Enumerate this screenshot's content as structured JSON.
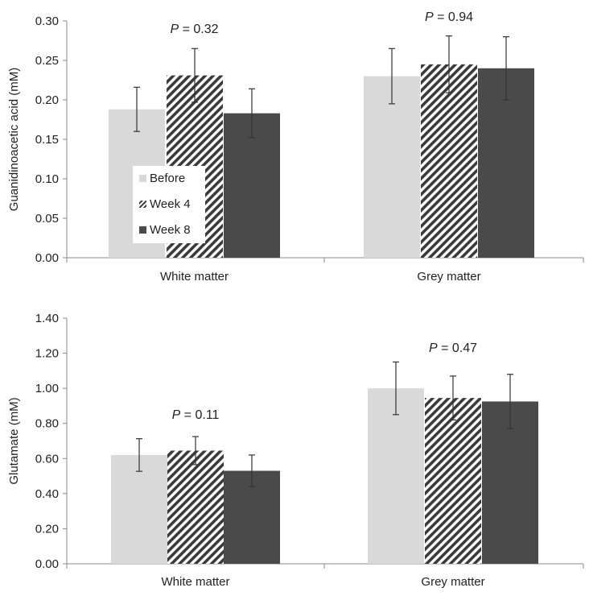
{
  "colors": {
    "before": "#d9d9d9",
    "week4_stripe": "#3a3a3a",
    "week4_bg": "#ffffff",
    "week8": "#4a4a4a",
    "axis": "#888888",
    "error_bar": "#333333"
  },
  "chart_data": [
    {
      "type": "bar",
      "ylabel": "Guanidinoacetic acid (mM)",
      "ylim": [
        0,
        0.3
      ],
      "yticks": [
        "0.00",
        "0.05",
        "0.10",
        "0.15",
        "0.20",
        "0.25",
        "0.30"
      ],
      "categories": [
        "White matter",
        "Grey matter"
      ],
      "series": [
        {
          "name": "Before",
          "values": [
            0.188,
            0.23
          ],
          "errors": [
            0.028,
            0.035
          ]
        },
        {
          "name": "Week 4",
          "values": [
            0.231,
            0.245
          ],
          "errors": [
            0.034,
            0.036
          ]
        },
        {
          "name": "Week 8",
          "values": [
            0.183,
            0.24
          ],
          "errors": [
            0.031,
            0.04
          ]
        }
      ],
      "annotations": [
        {
          "category": 0,
          "prefix": "P",
          "text": " = 0.32",
          "y": 0.29
        },
        {
          "category": 1,
          "prefix": "P",
          "text": " = 0.94",
          "y": 0.305
        }
      ],
      "legend": {
        "placement": "inside-left"
      },
      "grid": false
    },
    {
      "type": "bar",
      "ylabel": "Glutamate (mM)",
      "ylim": [
        0,
        1.4
      ],
      "yticks": [
        "0.00",
        "0.20",
        "0.40",
        "0.60",
        "0.80",
        "1.00",
        "1.20",
        "1.40"
      ],
      "categories": [
        "White matter",
        "Grey matter"
      ],
      "series": [
        {
          "name": "Before",
          "values": [
            0.62,
            1.0
          ],
          "errors": [
            0.093,
            0.15
          ]
        },
        {
          "name": "Week 4",
          "values": [
            0.645,
            0.945
          ],
          "errors": [
            0.08,
            0.125
          ]
        },
        {
          "name": "Week 8",
          "values": [
            0.53,
            0.925
          ],
          "errors": [
            0.09,
            0.155
          ]
        }
      ],
      "annotations": [
        {
          "category": 0,
          "prefix": "P",
          "text": " = 0.11",
          "y": 0.85
        },
        {
          "category": 1,
          "prefix": "P",
          "text": " = 0.47",
          "y": 1.23
        }
      ],
      "grid": false
    }
  ]
}
